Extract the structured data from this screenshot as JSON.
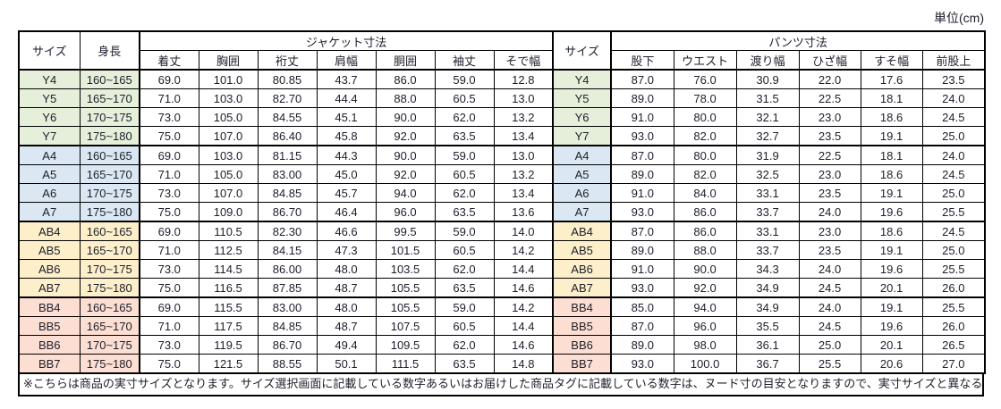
{
  "unit_label": "単位(cm)",
  "note": "※こちらは商品の実寸サイズとなります。サイズ選択画面に記載している数字あるいはお届けした商品タグに記載している数字は、ヌード寸の目安となりますので、実寸サイズと異なる場合がございます。",
  "table": {
    "col_headers": {
      "size": "サイズ",
      "height": "身長",
      "jacket_group": "ジャケット寸法",
      "jacket_cols": [
        "着丈",
        "胸囲",
        "裄丈",
        "肩幅",
        "胴囲",
        "袖丈",
        "そで幅"
      ],
      "size2": "サイズ",
      "pants_group": "パンツ寸法",
      "pants_cols": [
        "股下",
        "ウエスト",
        "渡り幅",
        "ひざ幅",
        "すそ幅",
        "前股上"
      ]
    },
    "groups": [
      {
        "name": "Y",
        "color": "#e6efda",
        "rows": [
          {
            "size": "Y4",
            "height": "160~165",
            "jacket": [
              "69.0",
              "101.0",
              "80.85",
              "43.7",
              "86.0",
              "59.0",
              "12.8"
            ],
            "pants": [
              "87.0",
              "76.0",
              "30.9",
              "22.0",
              "17.6",
              "23.5"
            ]
          },
          {
            "size": "Y5",
            "height": "165~170",
            "jacket": [
              "71.0",
              "103.0",
              "82.70",
              "44.4",
              "88.0",
              "60.5",
              "13.0"
            ],
            "pants": [
              "89.0",
              "78.0",
              "31.5",
              "22.5",
              "18.1",
              "24.0"
            ]
          },
          {
            "size": "Y6",
            "height": "170~175",
            "jacket": [
              "73.0",
              "105.0",
              "84.55",
              "45.1",
              "90.0",
              "62.0",
              "13.2"
            ],
            "pants": [
              "91.0",
              "80.0",
              "32.1",
              "23.0",
              "18.6",
              "24.5"
            ]
          },
          {
            "size": "Y7",
            "height": "175~180",
            "jacket": [
              "75.0",
              "107.0",
              "86.40",
              "45.8",
              "92.0",
              "63.5",
              "13.4"
            ],
            "pants": [
              "93.0",
              "82.0",
              "32.7",
              "23.5",
              "19.1",
              "25.0"
            ]
          }
        ]
      },
      {
        "name": "A",
        "color": "#dbe7f2",
        "rows": [
          {
            "size": "A4",
            "height": "160~165",
            "jacket": [
              "69.0",
              "103.0",
              "81.15",
              "44.3",
              "90.0",
              "59.0",
              "13.0"
            ],
            "pants": [
              "87.0",
              "80.0",
              "31.9",
              "22.5",
              "18.1",
              "24.0"
            ]
          },
          {
            "size": "A5",
            "height": "165~170",
            "jacket": [
              "71.0",
              "105.0",
              "83.00",
              "45.0",
              "92.0",
              "60.5",
              "13.2"
            ],
            "pants": [
              "89.0",
              "82.0",
              "32.5",
              "23.0",
              "18.6",
              "24.5"
            ]
          },
          {
            "size": "A6",
            "height": "170~175",
            "jacket": [
              "73.0",
              "107.0",
              "84.85",
              "45.7",
              "94.0",
              "62.0",
              "13.4"
            ],
            "pants": [
              "91.0",
              "84.0",
              "33.1",
              "23.5",
              "19.1",
              "25.0"
            ]
          },
          {
            "size": "A7",
            "height": "175~180",
            "jacket": [
              "75.0",
              "109.0",
              "86.70",
              "46.4",
              "96.0",
              "63.5",
              "13.6"
            ],
            "pants": [
              "93.0",
              "86.0",
              "33.7",
              "24.0",
              "19.6",
              "25.5"
            ]
          }
        ]
      },
      {
        "name": "AB",
        "color": "#fdefca",
        "rows": [
          {
            "size": "AB4",
            "height": "160~165",
            "jacket": [
              "69.0",
              "110.5",
              "82.30",
              "46.6",
              "99.5",
              "59.0",
              "14.0"
            ],
            "pants": [
              "87.0",
              "86.0",
              "33.1",
              "23.0",
              "18.6",
              "24.5"
            ]
          },
          {
            "size": "AB5",
            "height": "165~170",
            "jacket": [
              "71.0",
              "112.5",
              "84.15",
              "47.3",
              "101.5",
              "60.5",
              "14.2"
            ],
            "pants": [
              "89.0",
              "88.0",
              "33.7",
              "23.5",
              "19.1",
              "25.0"
            ]
          },
          {
            "size": "AB6",
            "height": "170~175",
            "jacket": [
              "73.0",
              "114.5",
              "86.00",
              "48.0",
              "103.5",
              "62.0",
              "14.4"
            ],
            "pants": [
              "91.0",
              "90.0",
              "34.3",
              "24.0",
              "19.6",
              "25.5"
            ]
          },
          {
            "size": "AB7",
            "height": "175~180",
            "jacket": [
              "75.0",
              "116.5",
              "87.85",
              "48.7",
              "105.5",
              "63.5",
              "14.6"
            ],
            "pants": [
              "93.0",
              "92.0",
              "34.9",
              "24.5",
              "20.1",
              "26.0"
            ]
          }
        ]
      },
      {
        "name": "BB",
        "color": "#fcded2",
        "rows": [
          {
            "size": "BB4",
            "height": "160~165",
            "jacket": [
              "69.0",
              "115.5",
              "83.00",
              "48.0",
              "105.5",
              "59.0",
              "14.2"
            ],
            "pants": [
              "85.0",
              "94.0",
              "34.9",
              "24.0",
              "19.1",
              "25.5"
            ]
          },
          {
            "size": "BB5",
            "height": "165~170",
            "jacket": [
              "71.0",
              "117.5",
              "84.85",
              "48.7",
              "107.5",
              "60.5",
              "14.4"
            ],
            "pants": [
              "87.0",
              "96.0",
              "35.5",
              "24.5",
              "19.6",
              "26.0"
            ]
          },
          {
            "size": "BB6",
            "height": "170~175",
            "jacket": [
              "73.0",
              "119.5",
              "86.70",
              "49.4",
              "109.5",
              "62.0",
              "14.6"
            ],
            "pants": [
              "89.0",
              "98.0",
              "36.1",
              "25.0",
              "20.1",
              "26.5"
            ]
          },
          {
            "size": "BB7",
            "height": "175~180",
            "jacket": [
              "75.0",
              "121.5",
              "88.55",
              "50.1",
              "111.5",
              "63.5",
              "14.8"
            ],
            "pants": [
              "93.0",
              "100.0",
              "36.7",
              "25.5",
              "20.6",
              "27.0"
            ]
          }
        ]
      }
    ]
  }
}
